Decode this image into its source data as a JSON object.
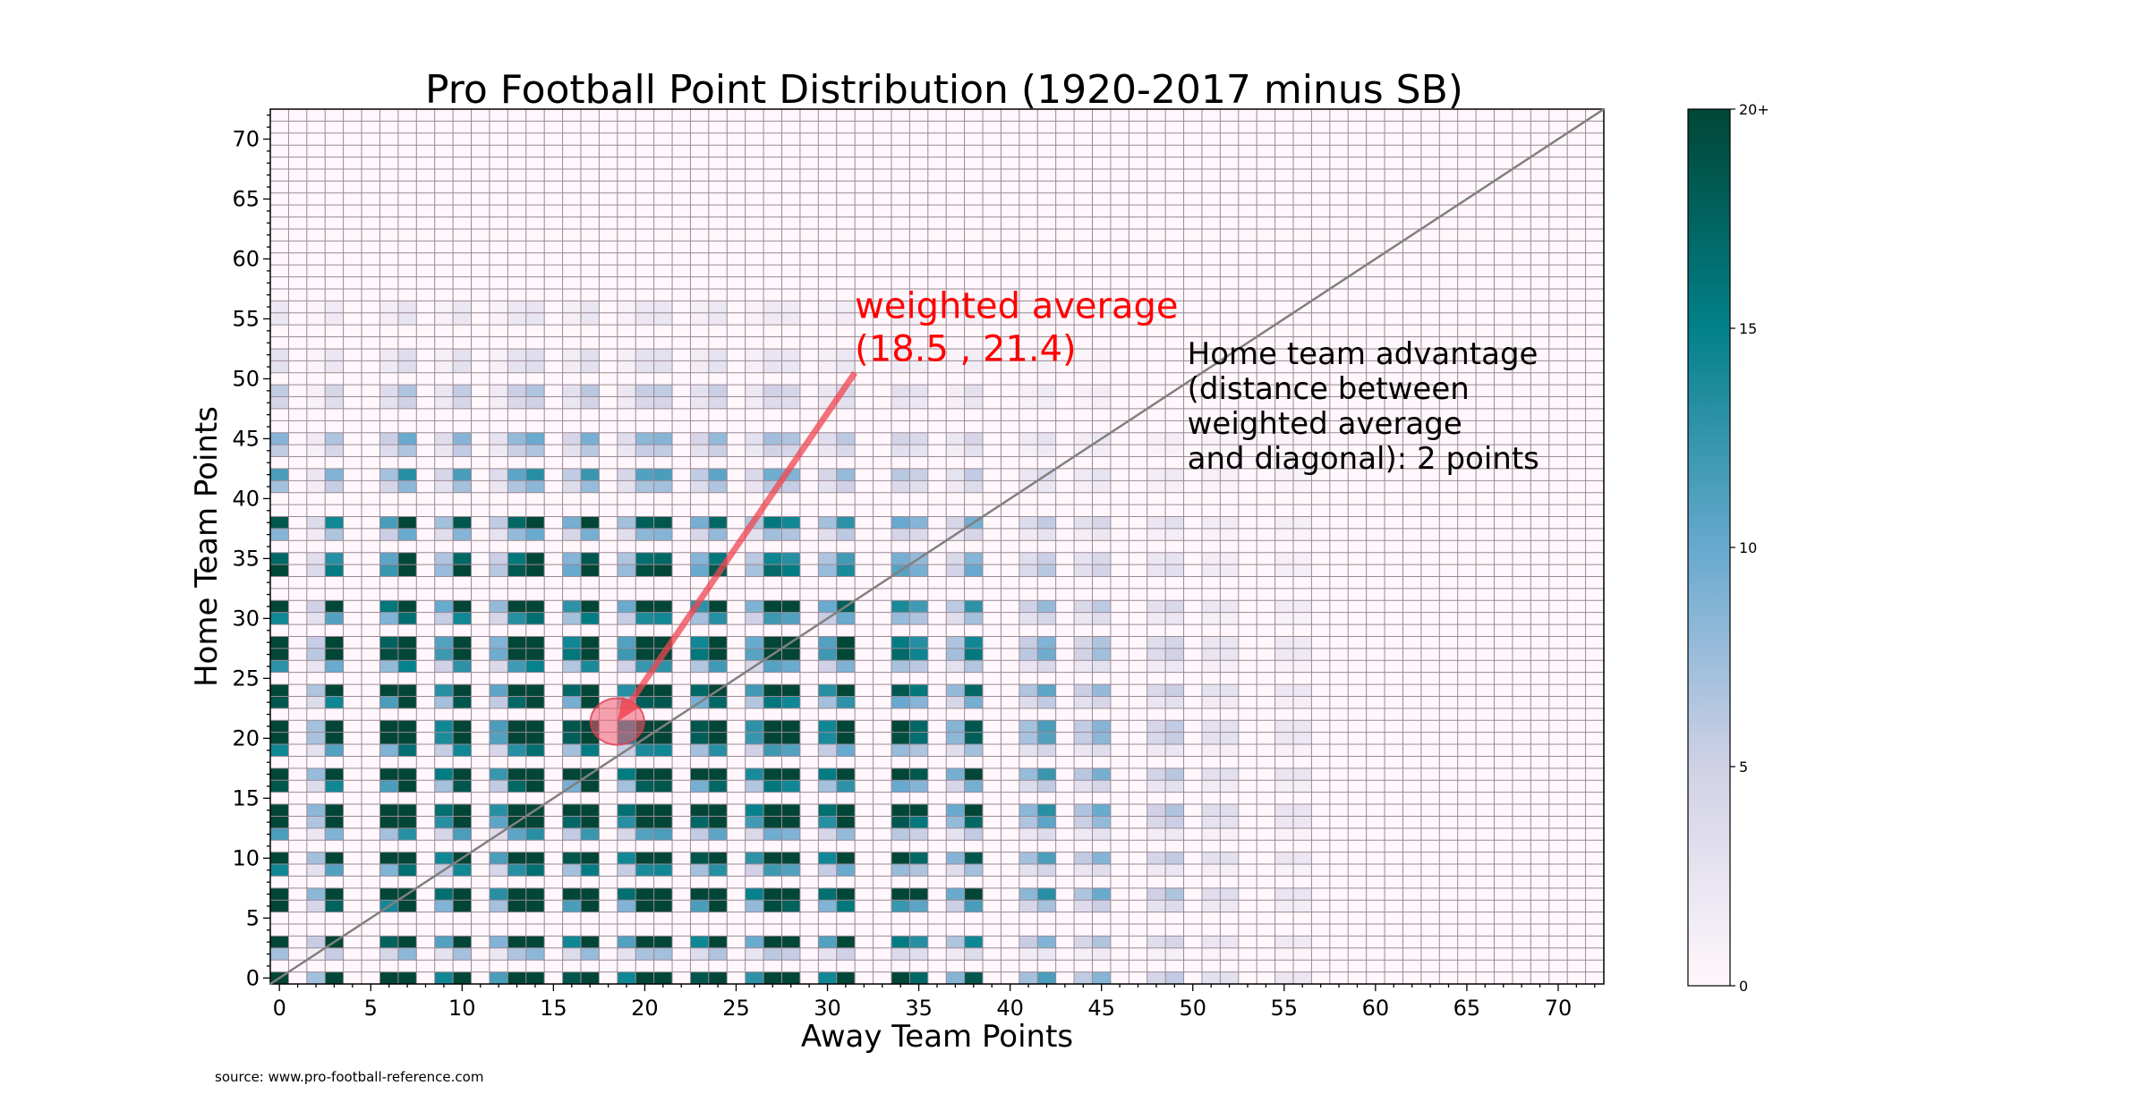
{
  "chart_data": {
    "type": "heatmap",
    "title": "Pro Football Point Distribution (1920-2017 minus SB)",
    "xlabel": "Away Team Points",
    "ylabel": "Home Team Points",
    "xlim": [
      -0.5,
      72.5
    ],
    "ylim": [
      -0.5,
      72.5
    ],
    "xticks": [
      0,
      5,
      10,
      15,
      20,
      25,
      30,
      35,
      40,
      45,
      50,
      55,
      60,
      65,
      70
    ],
    "yticks": [
      0,
      5,
      10,
      15,
      20,
      25,
      30,
      35,
      40,
      45,
      50,
      55,
      60,
      65,
      70
    ],
    "grid": true,
    "colorbar": {
      "min": 0,
      "max": 20,
      "ticks": [
        0,
        5,
        10,
        15,
        20
      ],
      "tick_labels": [
        "0",
        "5",
        "10",
        "15",
        "20+"
      ],
      "colors": [
        "#fff7fb",
        "#d0d1e6",
        "#67a9cf",
        "#02818a",
        "#014636"
      ]
    },
    "diagonal": {
      "from": [
        -0.5,
        -0.5
      ],
      "to": [
        72.5,
        72.5
      ],
      "color": "#808080"
    },
    "weighted_average": {
      "x": 18.5,
      "y": 21.4
    },
    "annotations": [
      {
        "text_lines": [
          "weighted average",
          "(18.5 , 21.4)"
        ],
        "color": "#ff0000",
        "anchor_data": [
          31.5,
          50.5
        ],
        "arrow_to": [
          18.5,
          21.4
        ]
      },
      {
        "text_lines": [
          "Home team advantage",
          "(distance between",
          "weighted average",
          "and diagonal): 2 points"
        ],
        "color": "#000000",
        "anchor_data": [
          49.7,
          42.5
        ]
      }
    ],
    "common_scores": [
      0,
      2,
      3,
      6,
      7,
      9,
      10,
      12,
      13,
      14,
      16,
      17,
      19,
      20,
      21,
      23,
      24,
      26,
      27,
      28,
      30,
      31,
      34,
      35,
      37,
      38,
      41,
      42,
      44,
      45,
      48,
      49,
      51,
      52,
      55,
      56
    ],
    "score_weights": {
      "0": 2.6,
      "2": 0.5,
      "3": 2.0,
      "6": 1.6,
      "7": 3.0,
      "9": 1.0,
      "10": 2.6,
      "12": 0.8,
      "13": 2.4,
      "14": 3.0,
      "16": 1.3,
      "17": 2.8,
      "19": 1.0,
      "20": 2.5,
      "21": 2.6,
      "23": 1.3,
      "24": 2.4,
      "26": 0.9,
      "27": 2.2,
      "28": 2.0,
      "30": 1.0,
      "31": 1.8,
      "34": 1.4,
      "35": 1.2,
      "37": 0.6,
      "38": 1.3,
      "41": 0.5,
      "42": 0.8,
      "44": 0.4,
      "45": 0.6,
      "48": 0.3,
      "49": 0.4,
      "51": 0.2,
      "52": 0.2,
      "55": 0.15,
      "56": 0.15
    }
  },
  "source_note": "source: www.pro-football-reference.com"
}
